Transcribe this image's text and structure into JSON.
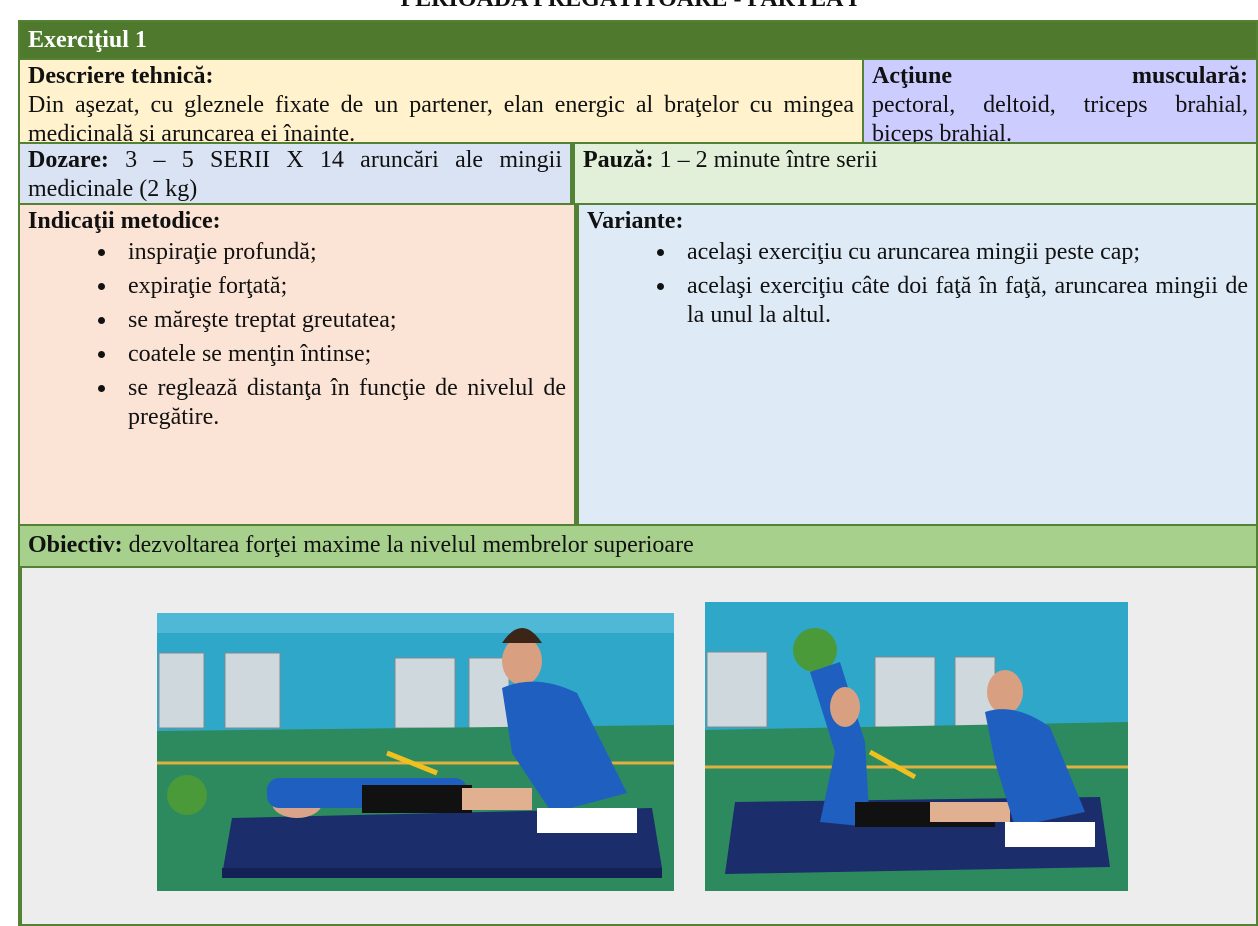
{
  "header": {
    "title": "PERIOADA PREGĂTITOARE - PARTEA I"
  },
  "exercise": {
    "title": "Exerciţiul 1",
    "description": {
      "label": "Descriere tehnică:",
      "text": "Din aşezat, cu gleznele fixate de un partener, elan energic al braţelor cu mingea  medicinală şi aruncarea ei înainte."
    },
    "muscle_action": {
      "label": "Acţiune musculară:",
      "text": "pectoral, deltoid, triceps brahial, biceps brahial."
    },
    "dosage": {
      "label": "Dozare:",
      "text": "3 – 5 SERII X 14 aruncări ale mingii medicinale (2 kg)"
    },
    "pause": {
      "label": "Pauză:",
      "text": "1 – 2 minute între serii"
    },
    "indications": {
      "label": "Indicaţii metodice:",
      "items": [
        "inspiraţie profundă;",
        "expiraţie forţată;",
        "se măreşte treptat greutatea;",
        "coatele se menţin întinse;",
        "se reglează distanţa în funcţie de nivelul de pregătire."
      ]
    },
    "variants": {
      "label": "Variante:",
      "items": [
        "acelaşi exerciţiu cu aruncarea mingii peste cap;",
        "acelaşi exerciţiu câte doi faţă în faţă, aruncarea mingii de la unul la altul."
      ]
    },
    "objective": {
      "label": "Obiectiv:",
      "text": "dezvoltarea forţei maxime la nivelul membrelor superioare"
    }
  }
}
